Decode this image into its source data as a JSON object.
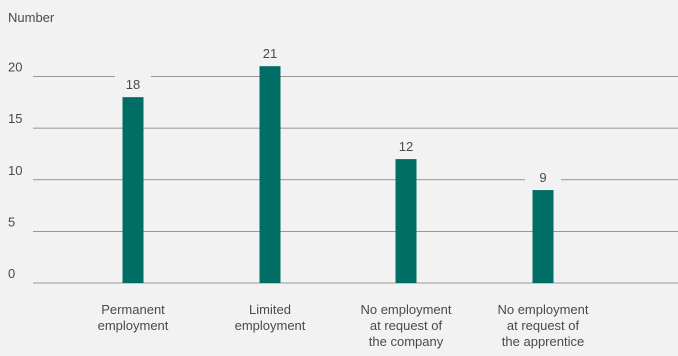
{
  "chart_data": {
    "type": "bar",
    "ylabel": "Number",
    "xlabel": "",
    "ylim": [
      0,
      21
    ],
    "yticks": [
      0,
      5,
      10,
      15,
      20
    ],
    "categories": [
      [
        "Permanent",
        "employment"
      ],
      [
        "Limited",
        "employment"
      ],
      [
        "No employment",
        "at request of",
        "the company"
      ],
      [
        "No employment",
        "at request of",
        "the apprentice"
      ]
    ],
    "values": [
      18,
      21,
      12,
      9
    ],
    "bar_color": "#006e64",
    "grid": true
  }
}
